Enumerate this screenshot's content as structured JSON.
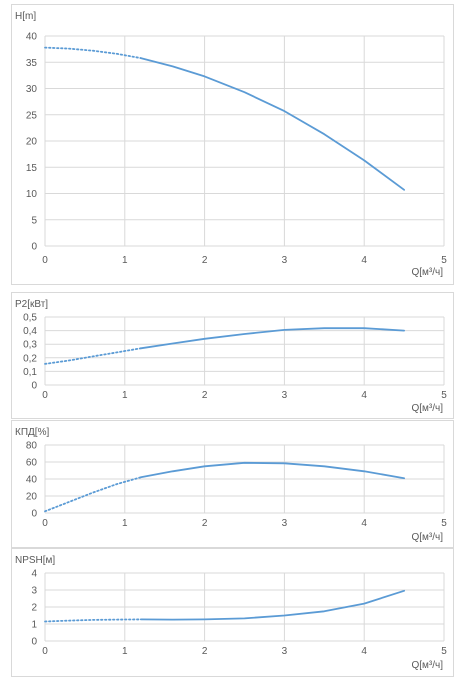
{
  "chart_data": [
    {
      "type": "line",
      "ylabel": "H[m]",
      "xlabel": "Q[м³/ч]",
      "xlim": [
        0,
        5
      ],
      "ylim": [
        0,
        40
      ],
      "xticks": [
        "0",
        "1",
        "2",
        "3",
        "4",
        "5"
      ],
      "yticks": [
        "0",
        "5",
        "10",
        "15",
        "20",
        "25",
        "30",
        "35",
        "40"
      ],
      "grid": true,
      "color": "#5b9bd5",
      "series": [
        {
          "dotted": true,
          "x": [
            0,
            0.3,
            0.6,
            0.9,
            1.2
          ],
          "y": [
            37.8,
            37.6,
            37.2,
            36.6,
            35.8
          ]
        },
        {
          "dotted": false,
          "x": [
            1.2,
            1.6,
            2.0,
            2.5,
            3.0,
            3.5,
            4.0,
            4.5
          ],
          "y": [
            35.8,
            34.2,
            32.3,
            29.3,
            25.7,
            21.3,
            16.3,
            10.7
          ]
        }
      ]
    },
    {
      "type": "line",
      "ylabel": "P2[кВт]",
      "xlabel": "Q[м³/ч]",
      "xlim": [
        0,
        5
      ],
      "ylim": [
        0,
        0.5
      ],
      "xticks": [
        "0",
        "1",
        "2",
        "3",
        "4",
        "5"
      ],
      "yticks": [
        "0",
        "0,1",
        "0,2",
        "0,3",
        "0,4",
        "0,5"
      ],
      "grid": true,
      "color": "#5b9bd5",
      "series": [
        {
          "dotted": true,
          "x": [
            0,
            0.3,
            0.6,
            0.9,
            1.2
          ],
          "y": [
            0.155,
            0.18,
            0.21,
            0.24,
            0.27
          ]
        },
        {
          "dotted": false,
          "x": [
            1.2,
            1.6,
            2.0,
            2.5,
            3.0,
            3.5,
            4.0,
            4.5
          ],
          "y": [
            0.27,
            0.305,
            0.34,
            0.375,
            0.405,
            0.418,
            0.418,
            0.4
          ]
        }
      ]
    },
    {
      "type": "line",
      "ylabel": "КПД[%]",
      "xlabel": "Q[м³/ч]",
      "xlim": [
        0,
        5
      ],
      "ylim": [
        0,
        80
      ],
      "xticks": [
        "0",
        "1",
        "2",
        "3",
        "4",
        "5"
      ],
      "yticks": [
        "0",
        "20",
        "40",
        "60",
        "80"
      ],
      "grid": true,
      "color": "#5b9bd5",
      "series": [
        {
          "dotted": true,
          "x": [
            0,
            0.3,
            0.6,
            0.9,
            1.2
          ],
          "y": [
            2,
            13,
            24,
            34,
            42
          ]
        },
        {
          "dotted": false,
          "x": [
            1.2,
            1.6,
            2.0,
            2.5,
            3.0,
            3.5,
            4.0,
            4.5
          ],
          "y": [
            42,
            49,
            55,
            59,
            58.5,
            55,
            49,
            41
          ]
        }
      ]
    },
    {
      "type": "line",
      "ylabel": "NPSH[м]",
      "xlabel": "Q[м³/ч]",
      "xlim": [
        0,
        5
      ],
      "ylim": [
        0,
        4
      ],
      "xticks": [
        "0",
        "1",
        "2",
        "3",
        "4",
        "5"
      ],
      "yticks": [
        "0",
        "1",
        "2",
        "3",
        "4"
      ],
      "grid": true,
      "color": "#5b9bd5",
      "series": [
        {
          "dotted": true,
          "x": [
            0,
            0.3,
            0.6,
            0.9,
            1.2
          ],
          "y": [
            1.15,
            1.2,
            1.24,
            1.26,
            1.27
          ]
        },
        {
          "dotted": false,
          "x": [
            1.2,
            1.6,
            2.0,
            2.5,
            3.0,
            3.5,
            4.0,
            4.5
          ],
          "y": [
            1.27,
            1.26,
            1.27,
            1.33,
            1.5,
            1.75,
            2.2,
            2.95
          ]
        }
      ]
    }
  ]
}
